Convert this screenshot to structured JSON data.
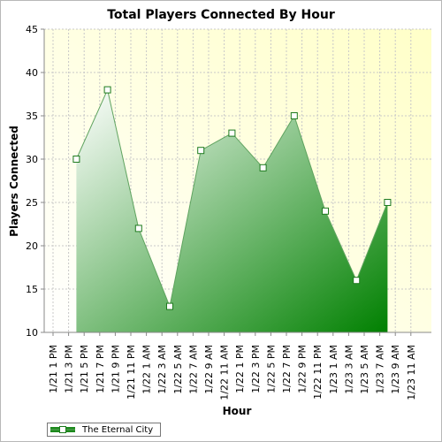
{
  "chart_data": {
    "type": "area",
    "title": "Total Players Connected By Hour",
    "xlabel": "Hour",
    "ylabel": "Players Connected",
    "ylim": [
      10,
      45
    ],
    "yticks": [
      10,
      15,
      20,
      25,
      30,
      35,
      40,
      45
    ],
    "categories": [
      "1/21 1 PM",
      "1/21 3 PM",
      "1/21 5 PM",
      "1/21 7 PM",
      "1/21 9 PM",
      "1/21 11 PM",
      "1/22 1 AM",
      "1/22 3 AM",
      "1/22 5 AM",
      "1/22 7 AM",
      "1/22 9 AM",
      "1/22 11 AM",
      "1/22 1 PM",
      "1/22 3 PM",
      "1/22 5 PM",
      "1/22 7 PM",
      "1/22 9 PM",
      "1/22 11 PM",
      "1/23 1 AM",
      "1/23 3 AM",
      "1/23 5 AM",
      "1/23 7 AM",
      "1/23 9 AM",
      "1/23 11 AM"
    ],
    "series": [
      {
        "name": "The Eternal City",
        "points": [
          {
            "x": "1/21 4 PM",
            "y": 30
          },
          {
            "x": "1/21 8 PM",
            "y": 38
          },
          {
            "x": "1/22 12 AM",
            "y": 22
          },
          {
            "x": "1/22 4 AM",
            "y": 13
          },
          {
            "x": "1/22 8 AM",
            "y": 31
          },
          {
            "x": "1/22 12 PM",
            "y": 33
          },
          {
            "x": "1/22 4 PM",
            "y": 29
          },
          {
            "x": "1/22 8 PM",
            "y": 35
          },
          {
            "x": "1/23 12 AM",
            "y": 24
          },
          {
            "x": "1/23 4 AM",
            "y": 16
          },
          {
            "x": "1/23 8 AM",
            "y": 25
          }
        ]
      }
    ],
    "grid": true,
    "legend": "bottom-left",
    "colors": {
      "plot_bg_start": "#ffffff",
      "plot_bg_end": "#ffffc8",
      "area_light": "#ffffff",
      "area_dark": "#008000",
      "line": "#5fa35f",
      "marker_fill": "#ffffff",
      "marker_stroke": "#1d7a1d",
      "grid": "#c8c8c8"
    }
  }
}
